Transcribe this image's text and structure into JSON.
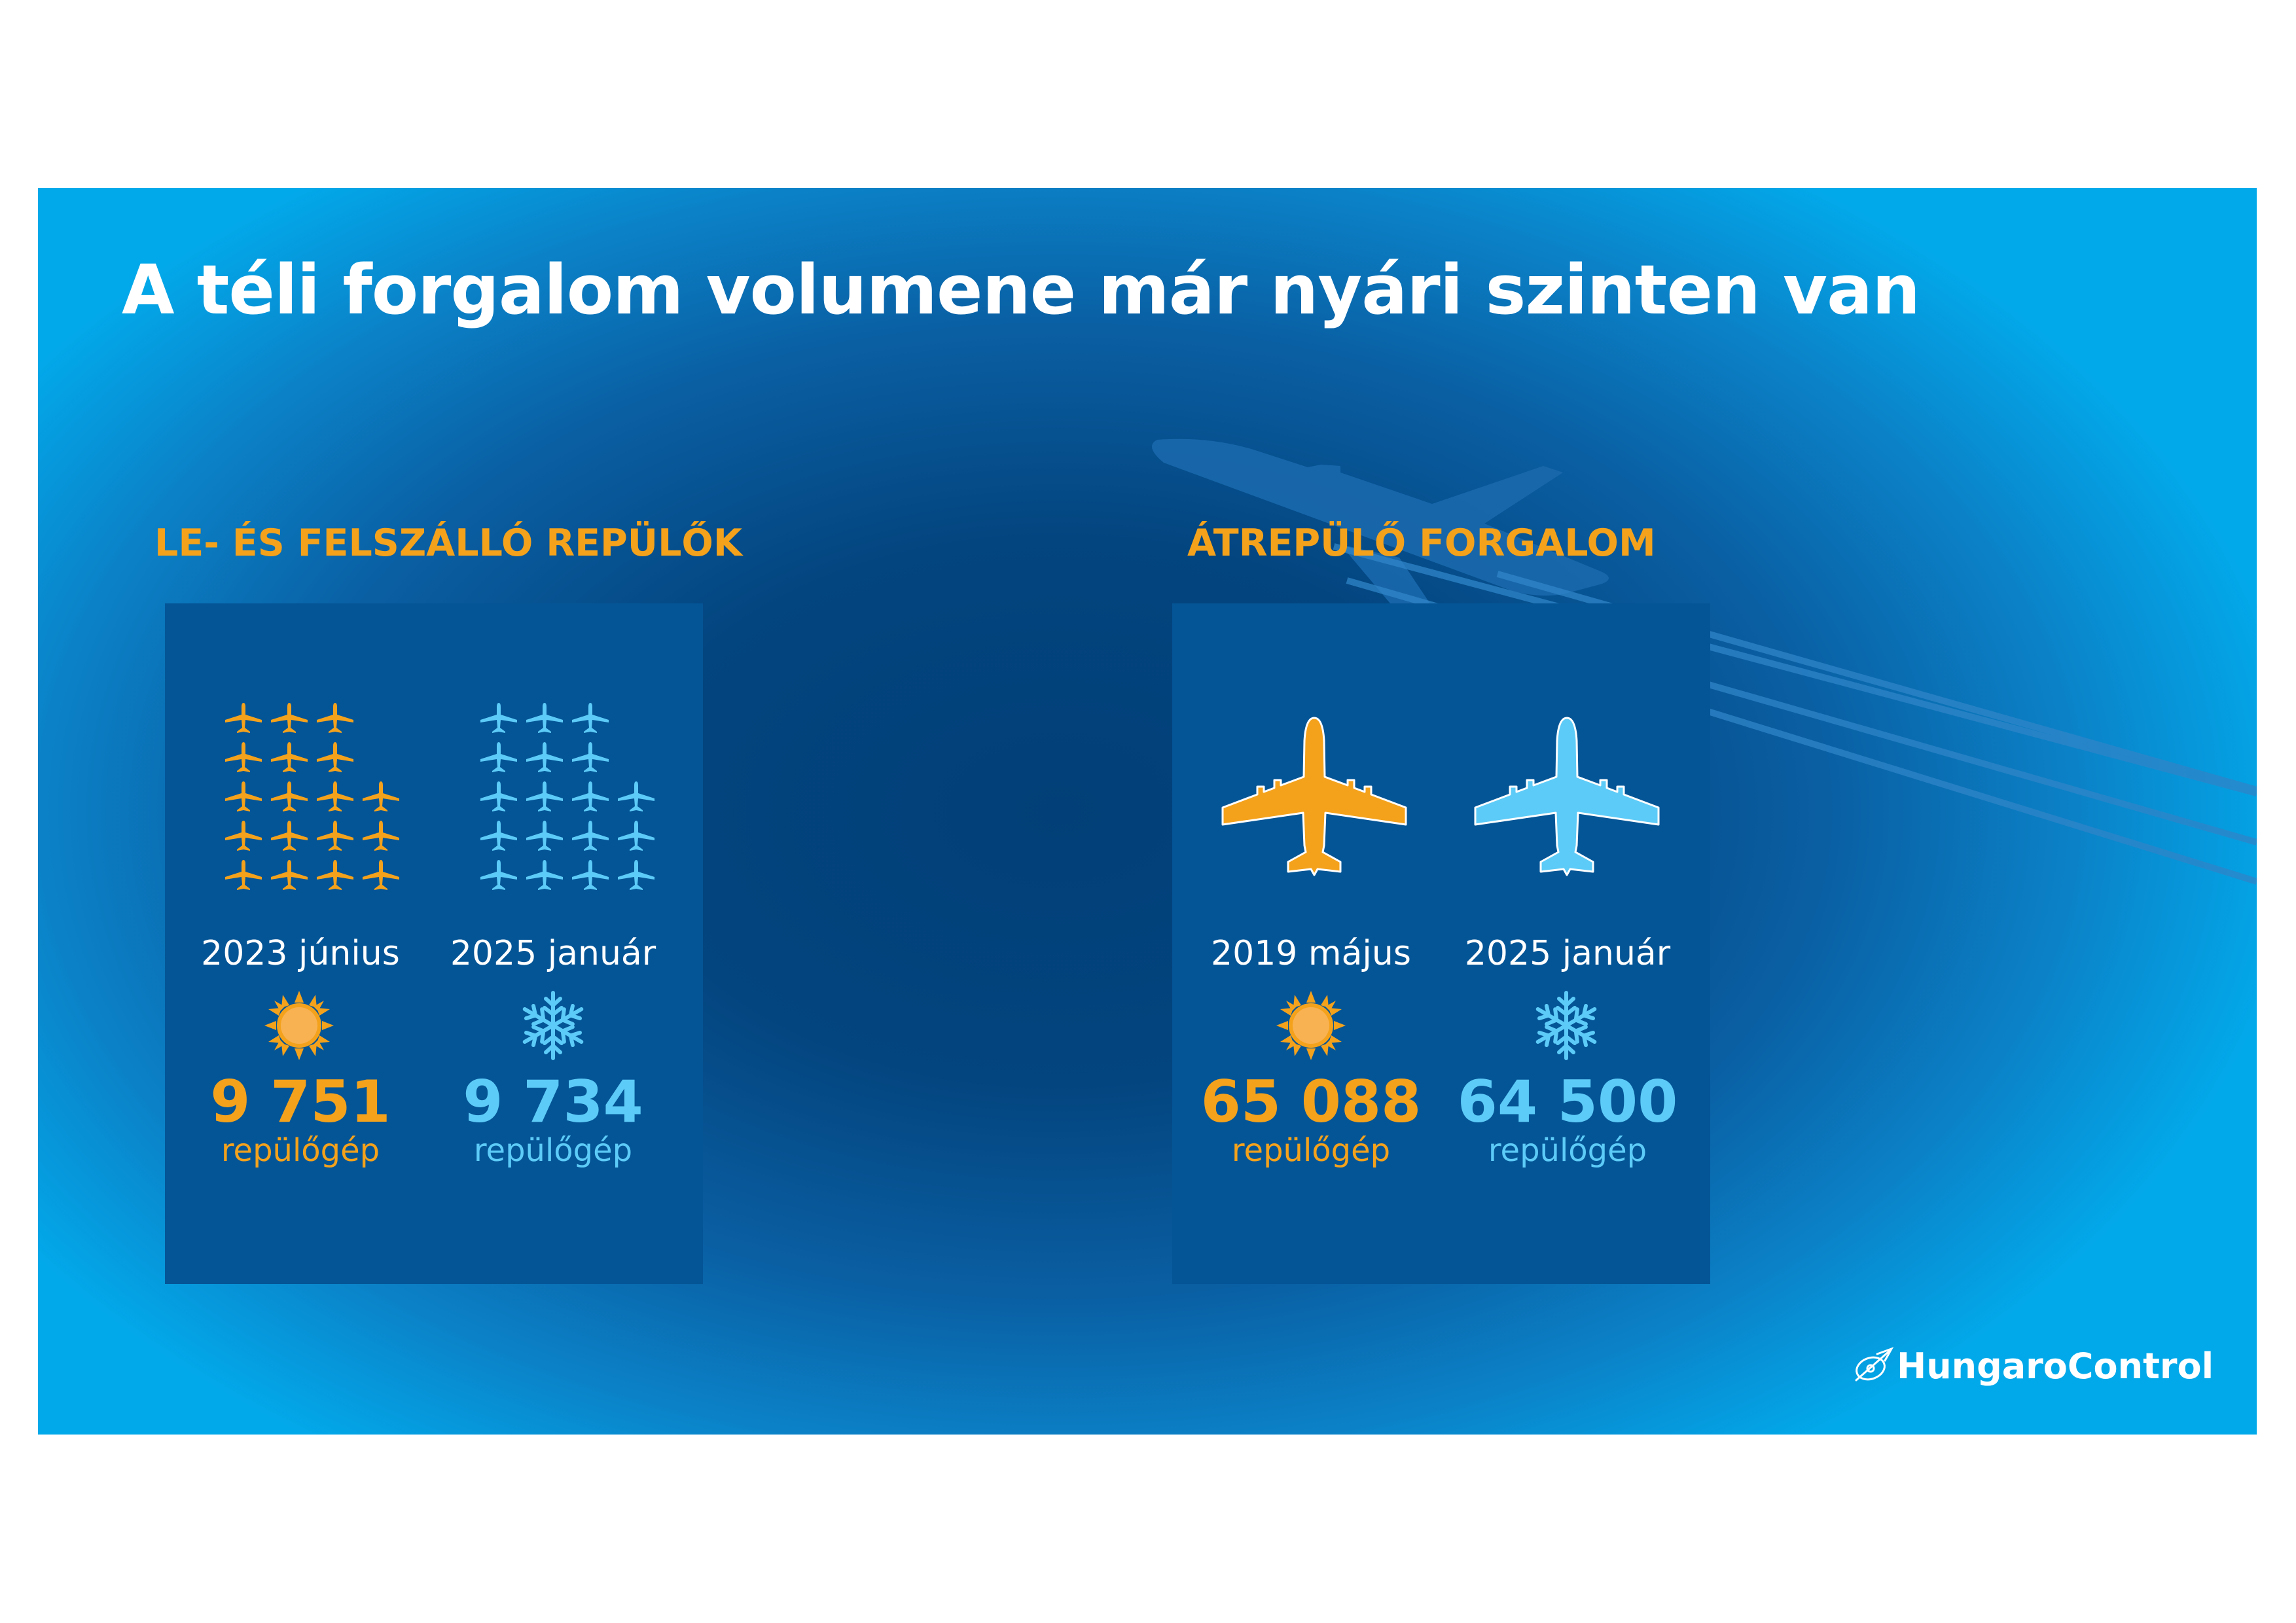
{
  "title": "A téli forgalom volumene már nyári szinten van",
  "sections": [
    {
      "heading": "LE- ÉS FELSZÁLLÓ REPÜLŐK",
      "columns": [
        {
          "period": "2023 június",
          "season": "sun-icon",
          "value": "9 751",
          "unit": "repülőgép",
          "color": "#f4a21c"
        },
        {
          "period": "2025 január",
          "season": "snowflake-icon",
          "value": "9 734",
          "unit": "repülőgép",
          "color": "#5dcbf7"
        }
      ]
    },
    {
      "heading": "ÁTREPÜLŐ FORGALOM",
      "columns": [
        {
          "period": "2019 május",
          "season": "sun-icon",
          "value": "65 088",
          "unit": "repülőgép",
          "color": "#f4a21c"
        },
        {
          "period": "2025 január",
          "season": "snowflake-icon",
          "value": "64 500",
          "unit": "repülőgép",
          "color": "#5dcbf7"
        }
      ]
    }
  ],
  "logo": {
    "text": "HungaroControl",
    "icon": "hungarocontrol-logo-icon"
  },
  "colors": {
    "orange": "#f4a21c",
    "cyan": "#5dcbf7",
    "panel": "#045596",
    "background": "#03457f"
  }
}
